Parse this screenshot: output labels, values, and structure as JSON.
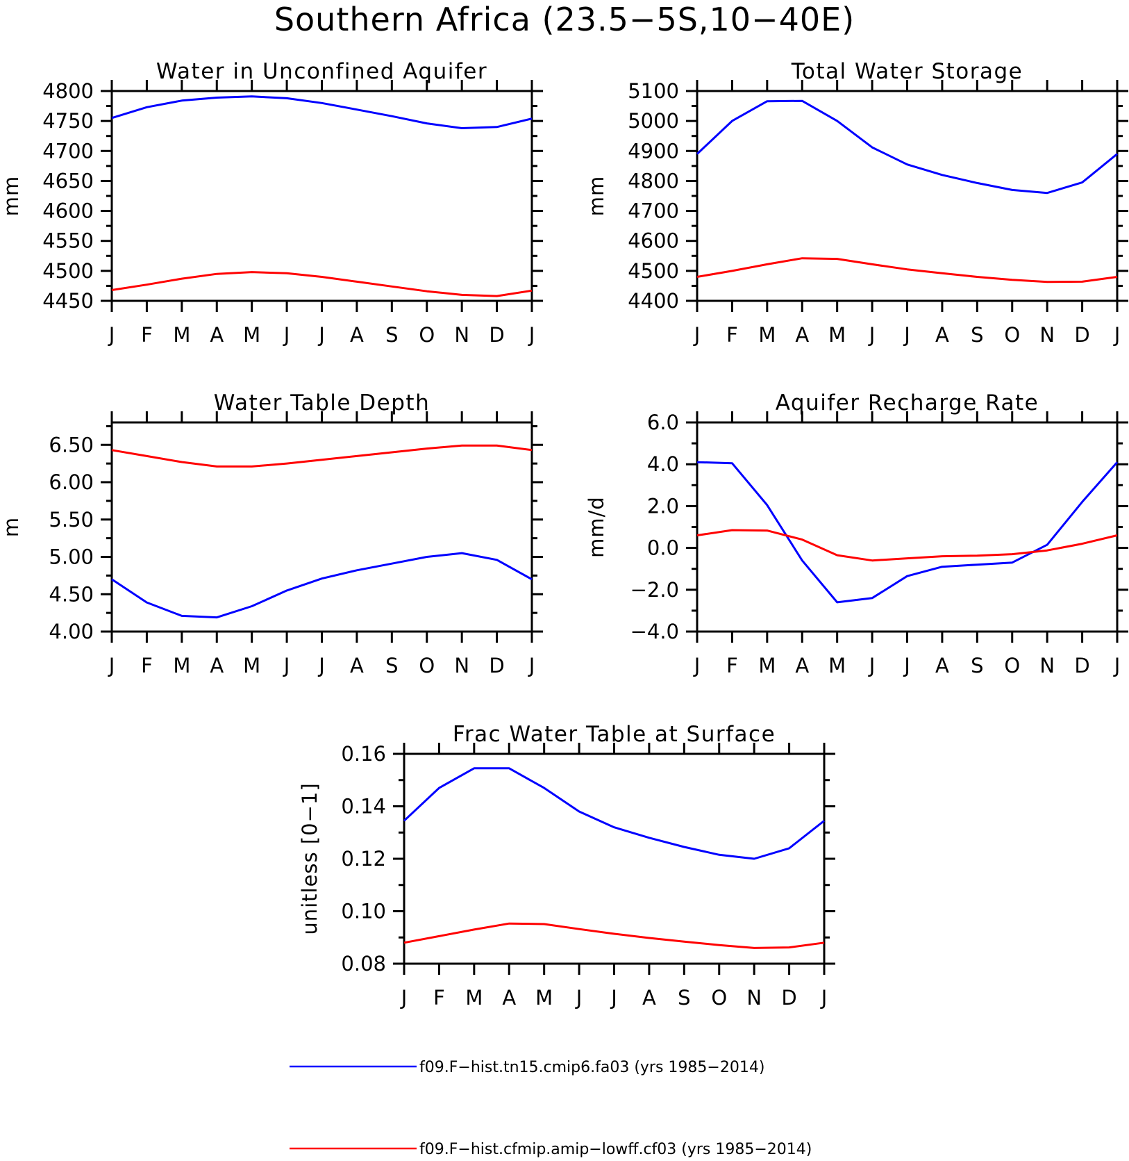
{
  "figure": {
    "title": "Southern Africa (23.5−5S,10−40E)",
    "months": [
      "J",
      "F",
      "M",
      "A",
      "M",
      "J",
      "J",
      "A",
      "S",
      "O",
      "N",
      "D",
      "J"
    ]
  },
  "legend": [
    {
      "label": "f09.F−hist.tn15.cmip6.fa03 (yrs 1985−2014)",
      "color": "#0000ff"
    },
    {
      "label": "f09.F−hist.cfmip.amip−lowff.cf03 (yrs 1985−2014)",
      "color": "#ff0000"
    }
  ],
  "chart_data": [
    {
      "type": "line",
      "title": "Water in Unconfined Aquifer",
      "ylabel": "mm",
      "ylim": [
        4450,
        4800
      ],
      "yticks": [
        4450,
        4500,
        4550,
        4600,
        4650,
        4700,
        4750,
        4800
      ],
      "ytick_labels": [
        "4450",
        "4500",
        "4550",
        "4600",
        "4650",
        "4700",
        "4750",
        "4800"
      ],
      "categories": [
        "J",
        "F",
        "M",
        "A",
        "M",
        "J",
        "J",
        "A",
        "S",
        "O",
        "N",
        "D",
        "J"
      ],
      "series": [
        {
          "color": "#0000ff",
          "values": [
            4755,
            4773,
            4784,
            4789,
            4791,
            4788,
            4780,
            4769,
            4758,
            4746,
            4738,
            4740,
            4754
          ]
        },
        {
          "color": "#ff0000",
          "values": [
            4468,
            4477,
            4487,
            4495,
            4498,
            4496,
            4490,
            4482,
            4474,
            4466,
            4460,
            4458,
            4467
          ]
        }
      ]
    },
    {
      "type": "line",
      "title": "Total Water Storage",
      "ylabel": "mm",
      "ylim": [
        4400,
        5100
      ],
      "yticks": [
        4400,
        4500,
        4600,
        4700,
        4800,
        4900,
        5000,
        5100
      ],
      "ytick_labels": [
        "4400",
        "4500",
        "4600",
        "4700",
        "4800",
        "4900",
        "5000",
        "5100"
      ],
      "categories": [
        "J",
        "F",
        "M",
        "A",
        "M",
        "J",
        "J",
        "A",
        "S",
        "O",
        "N",
        "D",
        "J"
      ],
      "series": [
        {
          "color": "#0000ff",
          "values": [
            4890,
            5000,
            5066,
            5067,
            5000,
            4912,
            4855,
            4820,
            4793,
            4770,
            4760,
            4795,
            4890
          ]
        },
        {
          "color": "#ff0000",
          "values": [
            4480,
            4500,
            4522,
            4542,
            4540,
            4522,
            4505,
            4492,
            4480,
            4470,
            4463,
            4464,
            4480
          ]
        }
      ]
    },
    {
      "type": "line",
      "title": "Water Table Depth",
      "ylabel": "m",
      "ylim": [
        4.0,
        6.8
      ],
      "yticks": [
        4.0,
        4.5,
        5.0,
        5.5,
        6.0,
        6.5
      ],
      "ytick_labels": [
        "4.00",
        "4.50",
        "5.00",
        "5.50",
        "6.00",
        "6.50"
      ],
      "categories": [
        "J",
        "F",
        "M",
        "A",
        "M",
        "J",
        "J",
        "A",
        "S",
        "O",
        "N",
        "D",
        "J"
      ],
      "series": [
        {
          "color": "#0000ff",
          "values": [
            4.7,
            4.39,
            4.21,
            4.19,
            4.34,
            4.55,
            4.71,
            4.82,
            4.91,
            5.0,
            5.05,
            4.96,
            4.7
          ]
        },
        {
          "color": "#ff0000",
          "values": [
            6.43,
            6.35,
            6.27,
            6.21,
            6.21,
            6.25,
            6.3,
            6.35,
            6.4,
            6.45,
            6.49,
            6.49,
            6.43
          ]
        }
      ]
    },
    {
      "type": "line",
      "title": "Aquifer Recharge Rate",
      "ylabel": "mm/d",
      "ylim": [
        -4.0,
        6.0
      ],
      "yticks": [
        -4.0,
        -2.0,
        0.0,
        2.0,
        4.0,
        6.0
      ],
      "ytick_labels": [
        "−4.0",
        "−2.0",
        "0.0",
        "2.0",
        "4.0",
        "6.0"
      ],
      "categories": [
        "J",
        "F",
        "M",
        "A",
        "M",
        "J",
        "J",
        "A",
        "S",
        "O",
        "N",
        "D",
        "J"
      ],
      "series": [
        {
          "color": "#0000ff",
          "values": [
            4.1,
            4.05,
            2.05,
            -0.6,
            -2.6,
            -2.4,
            -1.35,
            -0.9,
            -0.8,
            -0.7,
            0.15,
            2.2,
            4.1
          ]
        },
        {
          "color": "#ff0000",
          "values": [
            0.6,
            0.85,
            0.83,
            0.4,
            -0.35,
            -0.6,
            -0.5,
            -0.4,
            -0.37,
            -0.3,
            -0.12,
            0.2,
            0.6
          ]
        }
      ]
    },
    {
      "type": "line",
      "title": "Frac Water Table at Surface",
      "ylabel": "unitless [0−1]",
      "ylim": [
        0.08,
        0.16
      ],
      "yticks": [
        0.08,
        0.1,
        0.12,
        0.14,
        0.16
      ],
      "ytick_labels": [
        "0.08",
        "0.10",
        "0.12",
        "0.14",
        "0.16"
      ],
      "categories": [
        "J",
        "F",
        "M",
        "A",
        "M",
        "J",
        "J",
        "A",
        "S",
        "O",
        "N",
        "D",
        "J"
      ],
      "series": [
        {
          "color": "#0000ff",
          "values": [
            0.1345,
            0.147,
            0.1545,
            0.1545,
            0.147,
            0.138,
            0.132,
            0.128,
            0.1245,
            0.1215,
            0.12,
            0.124,
            0.1345
          ]
        },
        {
          "color": "#ff0000",
          "values": [
            0.088,
            0.0905,
            0.093,
            0.0953,
            0.0951,
            0.0932,
            0.0914,
            0.0898,
            0.0884,
            0.0871,
            0.086,
            0.0862,
            0.088
          ]
        }
      ]
    }
  ]
}
